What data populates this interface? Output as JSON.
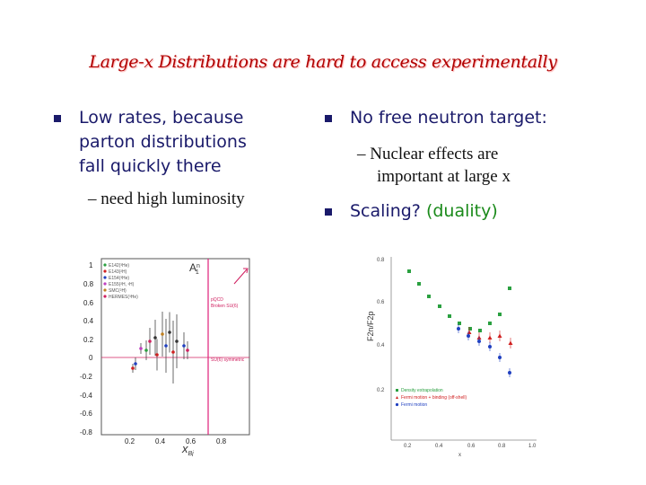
{
  "title": "Large-x Distributions are hard to access experimentally",
  "left": {
    "bullet1": [
      "Low rates, because",
      "parton distributions",
      "fall quickly there"
    ],
    "sub1": "– need high luminosity"
  },
  "right": {
    "bullet1": "No free neutron target:",
    "sub1": [
      "–  Nuclear effects are",
      "important at large x"
    ],
    "bullet2": "Scaling?",
    "bullet2_extra": "(duality)"
  },
  "plot_left": {
    "title": "A",
    "title_sup": "n",
    "title_sub": "1",
    "xlabel": "x",
    "xlabel_sub": "Bj",
    "yticks": [
      "1",
      "0.8",
      "0.6",
      "0.4",
      "0.2",
      "0",
      "-0.2",
      "-0.4",
      "-0.6",
      "-0.8"
    ],
    "xticks": [
      "0.2",
      "0.4",
      "0.6",
      "0.8"
    ],
    "legend": [
      "E142(³He)",
      "E143(²H)",
      "E154(³He)",
      "E155(²H, ¹H)",
      "SMC(²H)",
      "HERMES(³He)"
    ],
    "annotation1": "pQCD",
    "annotation2": "Broken SU(6)",
    "annotation3": "SU(6) symmetric"
  },
  "plot_right": {
    "ylabel": "F2n/F2p",
    "yticks": [
      "0.8",
      "0.6",
      "0.4",
      "0.2"
    ],
    "xticks": [
      "0.2",
      "0.4",
      "0.6",
      "0.8",
      "1.0"
    ],
    "xlabel": "x",
    "legend": [
      "Density extrapolation",
      "Fermi motion + binding (off-shell)",
      "Fermi motion"
    ],
    "colors": {
      "green": "#2aa040",
      "red": "#d02020",
      "blue": "#2040c0"
    }
  }
}
